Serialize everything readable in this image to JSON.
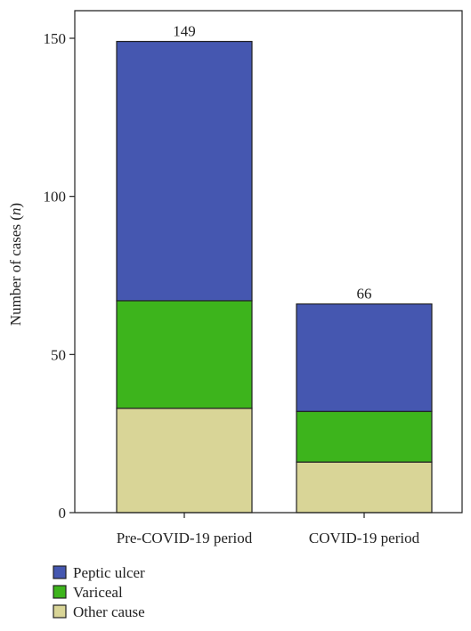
{
  "chart_data": {
    "type": "bar",
    "stacked": true,
    "categories": [
      "Pre-COVID-19 period",
      "COVID-19 period"
    ],
    "series": [
      {
        "name": "Other cause",
        "color": "#d9d597",
        "values": [
          33,
          16
        ]
      },
      {
        "name": "Variceal",
        "color": "#3db41c",
        "values": [
          34,
          16
        ]
      },
      {
        "name": "Peptic ulcer",
        "color": "#4557b0",
        "values": [
          82,
          34
        ]
      }
    ],
    "totals": [
      149,
      66
    ],
    "ylabel": "Number of cases",
    "ylabel_italic": "n",
    "ylim": [
      0,
      160
    ],
    "yticks": [
      0,
      50,
      100,
      150
    ],
    "grid": false,
    "legend_placement": "bottom-left",
    "legend_order": [
      "Peptic ulcer",
      "Variceal",
      "Other cause"
    ]
  }
}
